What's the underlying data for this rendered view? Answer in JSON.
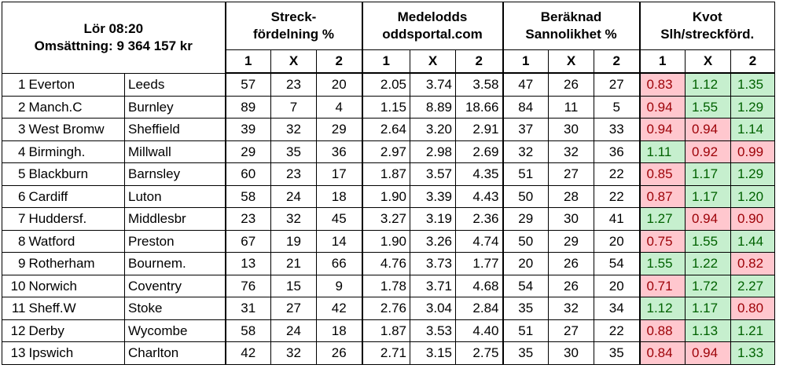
{
  "header": {
    "time": "Lör 08:20",
    "turnover": "Omsättning: 9 364 157 kr",
    "groups": [
      {
        "line1": "Streck-",
        "line2": "fördelning %"
      },
      {
        "line1": "Medelodds",
        "line2": "oddsportal.com"
      },
      {
        "line1": "Beräknad",
        "line2": "Sannolikhet %"
      },
      {
        "line1": "Kvot",
        "line2": "Slh/streckförd."
      }
    ],
    "sub_labels": [
      "1",
      "X",
      "2"
    ]
  },
  "rows": [
    {
      "n": "1",
      "home": "Everton",
      "away": "Leeds",
      "streck": [
        "57",
        "23",
        "20"
      ],
      "odds": [
        "2.05",
        "3.74",
        "3.58"
      ],
      "prob": [
        "47",
        "26",
        "27"
      ],
      "kvot": [
        "0.83",
        "1.12",
        "1.35"
      ],
      "kvot_status": [
        "red",
        "green",
        "green"
      ]
    },
    {
      "n": "2",
      "home": "Manch.C",
      "away": "Burnley",
      "streck": [
        "89",
        "7",
        "4"
      ],
      "odds": [
        "1.15",
        "8.89",
        "18.66"
      ],
      "prob": [
        "84",
        "11",
        "5"
      ],
      "kvot": [
        "0.94",
        "1.55",
        "1.29"
      ],
      "kvot_status": [
        "red",
        "green",
        "green"
      ]
    },
    {
      "n": "3",
      "home": "West Bromw",
      "away": "Sheffield",
      "streck": [
        "39",
        "32",
        "29"
      ],
      "odds": [
        "2.64",
        "3.20",
        "2.91"
      ],
      "prob": [
        "37",
        "30",
        "33"
      ],
      "kvot": [
        "0.94",
        "0.94",
        "1.14"
      ],
      "kvot_status": [
        "red",
        "red",
        "green"
      ]
    },
    {
      "n": "4",
      "home": "Birmingh.",
      "away": "Millwall",
      "streck": [
        "29",
        "35",
        "36"
      ],
      "odds": [
        "2.97",
        "2.98",
        "2.69"
      ],
      "prob": [
        "32",
        "32",
        "36"
      ],
      "kvot": [
        "1.11",
        "0.92",
        "0.99"
      ],
      "kvot_status": [
        "green",
        "red",
        "red"
      ]
    },
    {
      "n": "5",
      "home": "Blackburn",
      "away": "Barnsley",
      "streck": [
        "60",
        "23",
        "17"
      ],
      "odds": [
        "1.87",
        "3.57",
        "4.35"
      ],
      "prob": [
        "51",
        "27",
        "22"
      ],
      "kvot": [
        "0.85",
        "1.17",
        "1.29"
      ],
      "kvot_status": [
        "red",
        "green",
        "green"
      ]
    },
    {
      "n": "6",
      "home": "Cardiff",
      "away": "Luton",
      "streck": [
        "58",
        "24",
        "18"
      ],
      "odds": [
        "1.90",
        "3.39",
        "4.43"
      ],
      "prob": [
        "50",
        "28",
        "22"
      ],
      "kvot": [
        "0.87",
        "1.17",
        "1.20"
      ],
      "kvot_status": [
        "red",
        "green",
        "green"
      ]
    },
    {
      "n": "7",
      "home": "Huddersf.",
      "away": "Middlesbr",
      "streck": [
        "23",
        "32",
        "45"
      ],
      "odds": [
        "3.27",
        "3.19",
        "2.36"
      ],
      "prob": [
        "29",
        "30",
        "41"
      ],
      "kvot": [
        "1.27",
        "0.94",
        "0.90"
      ],
      "kvot_status": [
        "green",
        "red",
        "red"
      ]
    },
    {
      "n": "8",
      "home": "Watford",
      "away": "Preston",
      "streck": [
        "67",
        "19",
        "14"
      ],
      "odds": [
        "1.90",
        "3.26",
        "4.74"
      ],
      "prob": [
        "50",
        "29",
        "20"
      ],
      "kvot": [
        "0.75",
        "1.55",
        "1.44"
      ],
      "kvot_status": [
        "red",
        "green",
        "green"
      ]
    },
    {
      "n": "9",
      "home": "Rotherham",
      "away": "Bournem.",
      "streck": [
        "13",
        "21",
        "66"
      ],
      "odds": [
        "4.76",
        "3.73",
        "1.77"
      ],
      "prob": [
        "20",
        "26",
        "54"
      ],
      "kvot": [
        "1.55",
        "1.22",
        "0.82"
      ],
      "kvot_status": [
        "green",
        "green",
        "red"
      ]
    },
    {
      "n": "10",
      "home": "Norwich",
      "away": "Coventry",
      "streck": [
        "76",
        "15",
        "9"
      ],
      "odds": [
        "1.78",
        "3.71",
        "4.68"
      ],
      "prob": [
        "54",
        "26",
        "20"
      ],
      "kvot": [
        "0.71",
        "1.72",
        "2.27"
      ],
      "kvot_status": [
        "red",
        "green",
        "green"
      ]
    },
    {
      "n": "11",
      "home": "Sheff.W",
      "away": "Stoke",
      "streck": [
        "31",
        "27",
        "42"
      ],
      "odds": [
        "2.76",
        "3.04",
        "2.84"
      ],
      "prob": [
        "35",
        "32",
        "34"
      ],
      "kvot": [
        "1.12",
        "1.17",
        "0.80"
      ],
      "kvot_status": [
        "green",
        "green",
        "red"
      ]
    },
    {
      "n": "12",
      "home": "Derby",
      "away": "Wycombe",
      "streck": [
        "58",
        "24",
        "18"
      ],
      "odds": [
        "1.87",
        "3.53",
        "4.40"
      ],
      "prob": [
        "51",
        "27",
        "22"
      ],
      "kvot": [
        "0.88",
        "1.13",
        "1.21"
      ],
      "kvot_status": [
        "red",
        "green",
        "green"
      ]
    },
    {
      "n": "13",
      "home": "Ipswich",
      "away": "Charlton",
      "streck": [
        "42",
        "32",
        "26"
      ],
      "odds": [
        "2.71",
        "3.15",
        "2.75"
      ],
      "prob": [
        "35",
        "30",
        "35"
      ],
      "kvot": [
        "0.84",
        "0.94",
        "1.33"
      ],
      "kvot_status": [
        "red",
        "red",
        "green"
      ]
    }
  ],
  "colors": {
    "red_fill": "#ffc7ce",
    "red_text": "#9c0006",
    "green_fill": "#c6efce",
    "green_text": "#006100"
  }
}
